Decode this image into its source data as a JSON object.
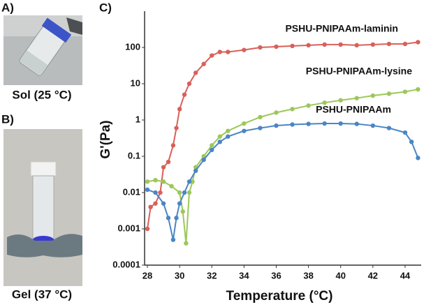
{
  "panels": [
    {
      "label": "A)",
      "caption": "Sol (25 °C)"
    },
    {
      "label": "B)",
      "caption": "Gel (37 °C)"
    }
  ],
  "chart_data": {
    "type": "line",
    "panel_label": "C)",
    "xlabel": "Temperature (°C)",
    "ylabel": "G'(Pa)",
    "log_y": true,
    "xlim": [
      28,
      45
    ],
    "xticks": [
      28,
      30,
      32,
      34,
      36,
      38,
      40,
      42,
      44
    ],
    "ylim": [
      0.0001,
      1000
    ],
    "yticks": [
      0.0001,
      0.001,
      0.01,
      0.1,
      1,
      10,
      100
    ],
    "series": [
      {
        "name": "PSHU-PNIPAAm-laminin",
        "color": "#d9605a",
        "x": [
          28,
          28.2,
          28.5,
          28.8,
          29,
          29.3,
          29.6,
          29.8,
          30,
          30.3,
          30.6,
          31,
          31.5,
          32,
          32.5,
          33,
          34,
          35,
          36,
          37,
          38,
          39,
          40,
          41,
          42,
          43,
          44,
          44.8
        ],
        "values": [
          0.001,
          0.004,
          0.005,
          0.01,
          0.05,
          0.07,
          0.2,
          0.6,
          2,
          5,
          10,
          20,
          35,
          60,
          75,
          75,
          85,
          100,
          105,
          110,
          115,
          120,
          120,
          115,
          120,
          125,
          125,
          140
        ]
      },
      {
        "name": "PSHU-PNIPAAm-lysine",
        "color": "#9dc75a",
        "x": [
          28,
          28.5,
          29,
          29.5,
          30,
          30.2,
          30.4,
          30.6,
          30.8,
          31,
          31.5,
          32,
          32.5,
          33,
          34,
          35,
          36,
          37,
          38,
          39,
          40,
          41,
          42,
          43,
          44,
          44.8
        ],
        "values": [
          0.02,
          0.022,
          0.02,
          0.015,
          0.01,
          0.003,
          0.0004,
          0.01,
          0.02,
          0.05,
          0.1,
          0.2,
          0.35,
          0.5,
          0.8,
          1.2,
          1.6,
          2,
          2.5,
          3,
          3.5,
          4,
          4.7,
          5.3,
          6,
          7
        ]
      },
      {
        "name": "PSHU-PNIPAAm",
        "color": "#4a86c5",
        "x": [
          28,
          28.5,
          29,
          29.3,
          29.6,
          29.8,
          30,
          30.3,
          30.6,
          31,
          31.5,
          32,
          32.5,
          33,
          34,
          35,
          36,
          37,
          38,
          39,
          40,
          41,
          42,
          43,
          44,
          44.4,
          44.8
        ],
        "values": [
          0.012,
          0.01,
          0.005,
          0.002,
          0.0005,
          0.002,
          0.005,
          0.01,
          0.02,
          0.04,
          0.08,
          0.15,
          0.25,
          0.35,
          0.5,
          0.6,
          0.7,
          0.75,
          0.78,
          0.8,
          0.8,
          0.78,
          0.7,
          0.6,
          0.45,
          0.25,
          0.09
        ]
      }
    ]
  }
}
